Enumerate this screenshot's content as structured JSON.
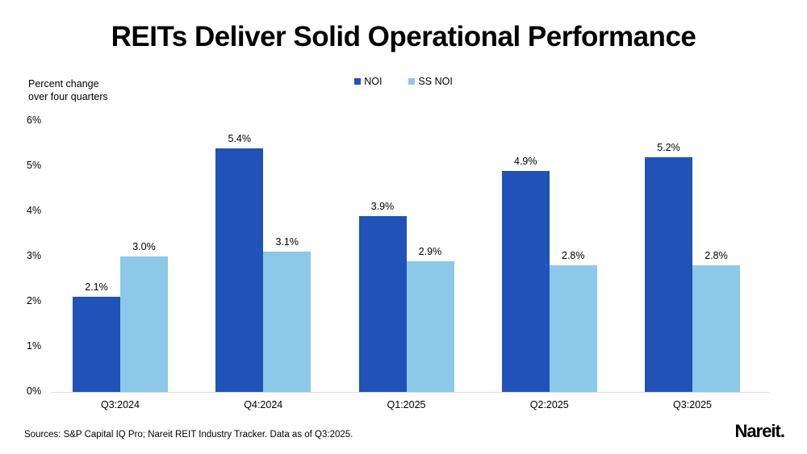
{
  "title": "REITs Deliver Solid Operational Performance",
  "axis_note": {
    "line1": "Percent change",
    "line2": "over four quarters"
  },
  "footer": {
    "sources": "Sources: S&P Capital IQ Pro; Nareit REIT Industry Tracker. Data as of Q3:2025.",
    "logo_text": "Nareit",
    "logo_suffix": "."
  },
  "chart_data": {
    "type": "bar",
    "title": "REITs Deliver Solid Operational Performance",
    "ylabel": "Percent change over four quarters",
    "xlabel": "",
    "categories": [
      "Q3:2024",
      "Q4:2024",
      "Q1:2025",
      "Q2:2025",
      "Q3:2025"
    ],
    "series": [
      {
        "name": "NOI",
        "color": "#2052B8",
        "values": [
          2.1,
          5.4,
          3.9,
          4.9,
          5.2
        ],
        "labels": [
          "2.1%",
          "5.4%",
          "3.9%",
          "4.9%",
          "5.2%"
        ]
      },
      {
        "name": "SS NOI",
        "color": "#8CC8E8",
        "values": [
          3.0,
          3.1,
          2.9,
          2.8,
          2.8
        ],
        "labels": [
          "3.0%",
          "3.1%",
          "2.9%",
          "2.8%",
          "2.8%"
        ]
      }
    ],
    "y_ticks": [
      "0%",
      "1%",
      "2%",
      "3%",
      "4%",
      "5%",
      "6%"
    ],
    "ylim": [
      0,
      6
    ],
    "grid": false,
    "legend_position": "top-center",
    "axis_line_color": "#d9d9d9",
    "background_color": "#ffffff"
  }
}
